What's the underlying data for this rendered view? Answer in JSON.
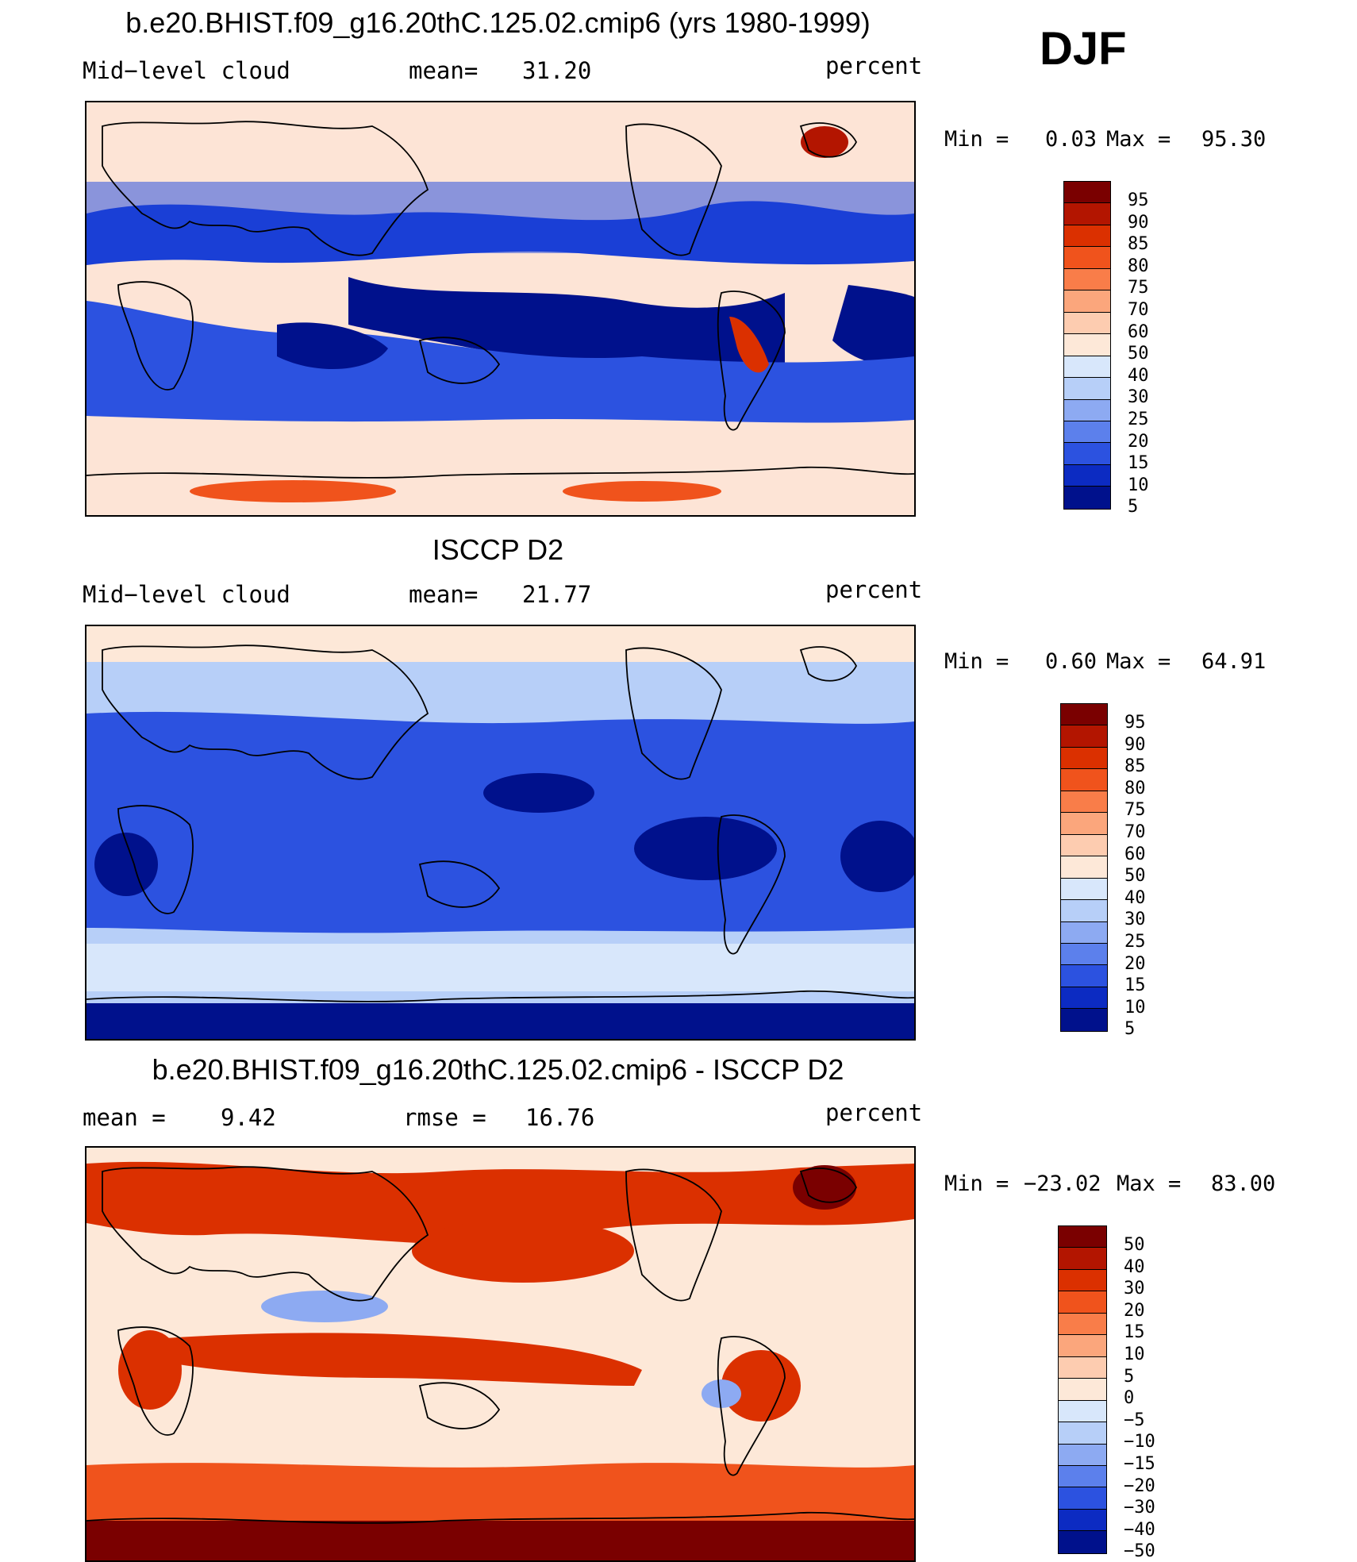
{
  "season": "DJF",
  "panels": [
    {
      "title": "b.e20.BHIST.f09_g16.20thC.125.02.cmip6 (yrs 1980-1999)",
      "left_label": "Mid−level cloud",
      "center_label": "mean=",
      "center_value": "31.20",
      "units": "percent",
      "min_label": "Min =",
      "min_value": "0.03",
      "max_label": "Max =",
      "max_value": "95.30",
      "colorbar": {
        "labels": [
          "95",
          "90",
          "85",
          "80",
          "75",
          "70",
          "60",
          "50",
          "40",
          "30",
          "25",
          "20",
          "15",
          "10",
          "5"
        ],
        "colors": [
          "#7a0000",
          "#b31500",
          "#db3000",
          "#f0531c",
          "#f97d49",
          "#fba67c",
          "#fdccb0",
          "#fde8d8",
          "#d8e7fb",
          "#b7cff8",
          "#8daaf2",
          "#5c80ec",
          "#2c52e0",
          "#0c2bc2",
          "#00118c"
        ]
      },
      "fields": {
        "base": "#fde4d6",
        "northern_subtropics": "#1a3fd6",
        "eastern_pacific": "#00118c",
        "south_ocean": "#2c52e0",
        "andes": "#db3000",
        "greenland": "#b31500",
        "antarctic_lobes": "#f0531c"
      }
    },
    {
      "title": "ISCCP D2",
      "left_label": "Mid−level cloud",
      "center_label": "mean=",
      "center_value": "21.77",
      "units": "percent",
      "min_label": "Min =",
      "min_value": "0.60",
      "max_label": "Max =",
      "max_value": "64.91",
      "colorbar": {
        "labels": [
          "95",
          "90",
          "85",
          "80",
          "75",
          "70",
          "60",
          "50",
          "40",
          "30",
          "25",
          "20",
          "15",
          "10",
          "5"
        ],
        "colors": [
          "#7a0000",
          "#b31500",
          "#db3000",
          "#f0531c",
          "#f97d49",
          "#fba67c",
          "#fdccb0",
          "#fde8d8",
          "#d8e7fb",
          "#b7cff8",
          "#8daaf2",
          "#5c80ec",
          "#2c52e0",
          "#0c2bc2",
          "#00118c"
        ]
      },
      "fields": {
        "base": "#b7cff8",
        "tropics": "#2c52e0",
        "deep": "#00118c",
        "arctic": "#fde8d8",
        "south_band": "#d8e7fb",
        "antarctic": "#00118c"
      }
    },
    {
      "title": "b.e20.BHIST.f09_g16.20thC.125.02.cmip6 - ISCCP D2",
      "left_label": "mean =",
      "left_value": "9.42",
      "center_label": "rmse =",
      "center_value": "16.76",
      "units": "percent",
      "min_label": "Min =",
      "min_value": "−23.02",
      "max_label": "Max =",
      "max_value": "83.00",
      "colorbar": {
        "labels": [
          "50",
          "40",
          "30",
          "20",
          "15",
          "10",
          "5",
          "0",
          "−5",
          "−10",
          "−15",
          "−20",
          "−30",
          "−40",
          "−50"
        ],
        "colors": [
          "#7a0000",
          "#b31500",
          "#db3000",
          "#f0531c",
          "#f97d49",
          "#fba67c",
          "#fdccb0",
          "#fde8d8",
          "#d8e7fb",
          "#b7cff8",
          "#8daaf2",
          "#5c80ec",
          "#2c52e0",
          "#0c2bc2",
          "#00118c"
        ]
      },
      "fields": {
        "base": "#fde8d8",
        "mid_latitudes": "#db3000",
        "south_band": "#f0531c",
        "antarctic": "#7a0000",
        "blue_spots": "#8daaf2",
        "greenland": "#7a0000"
      }
    }
  ]
}
